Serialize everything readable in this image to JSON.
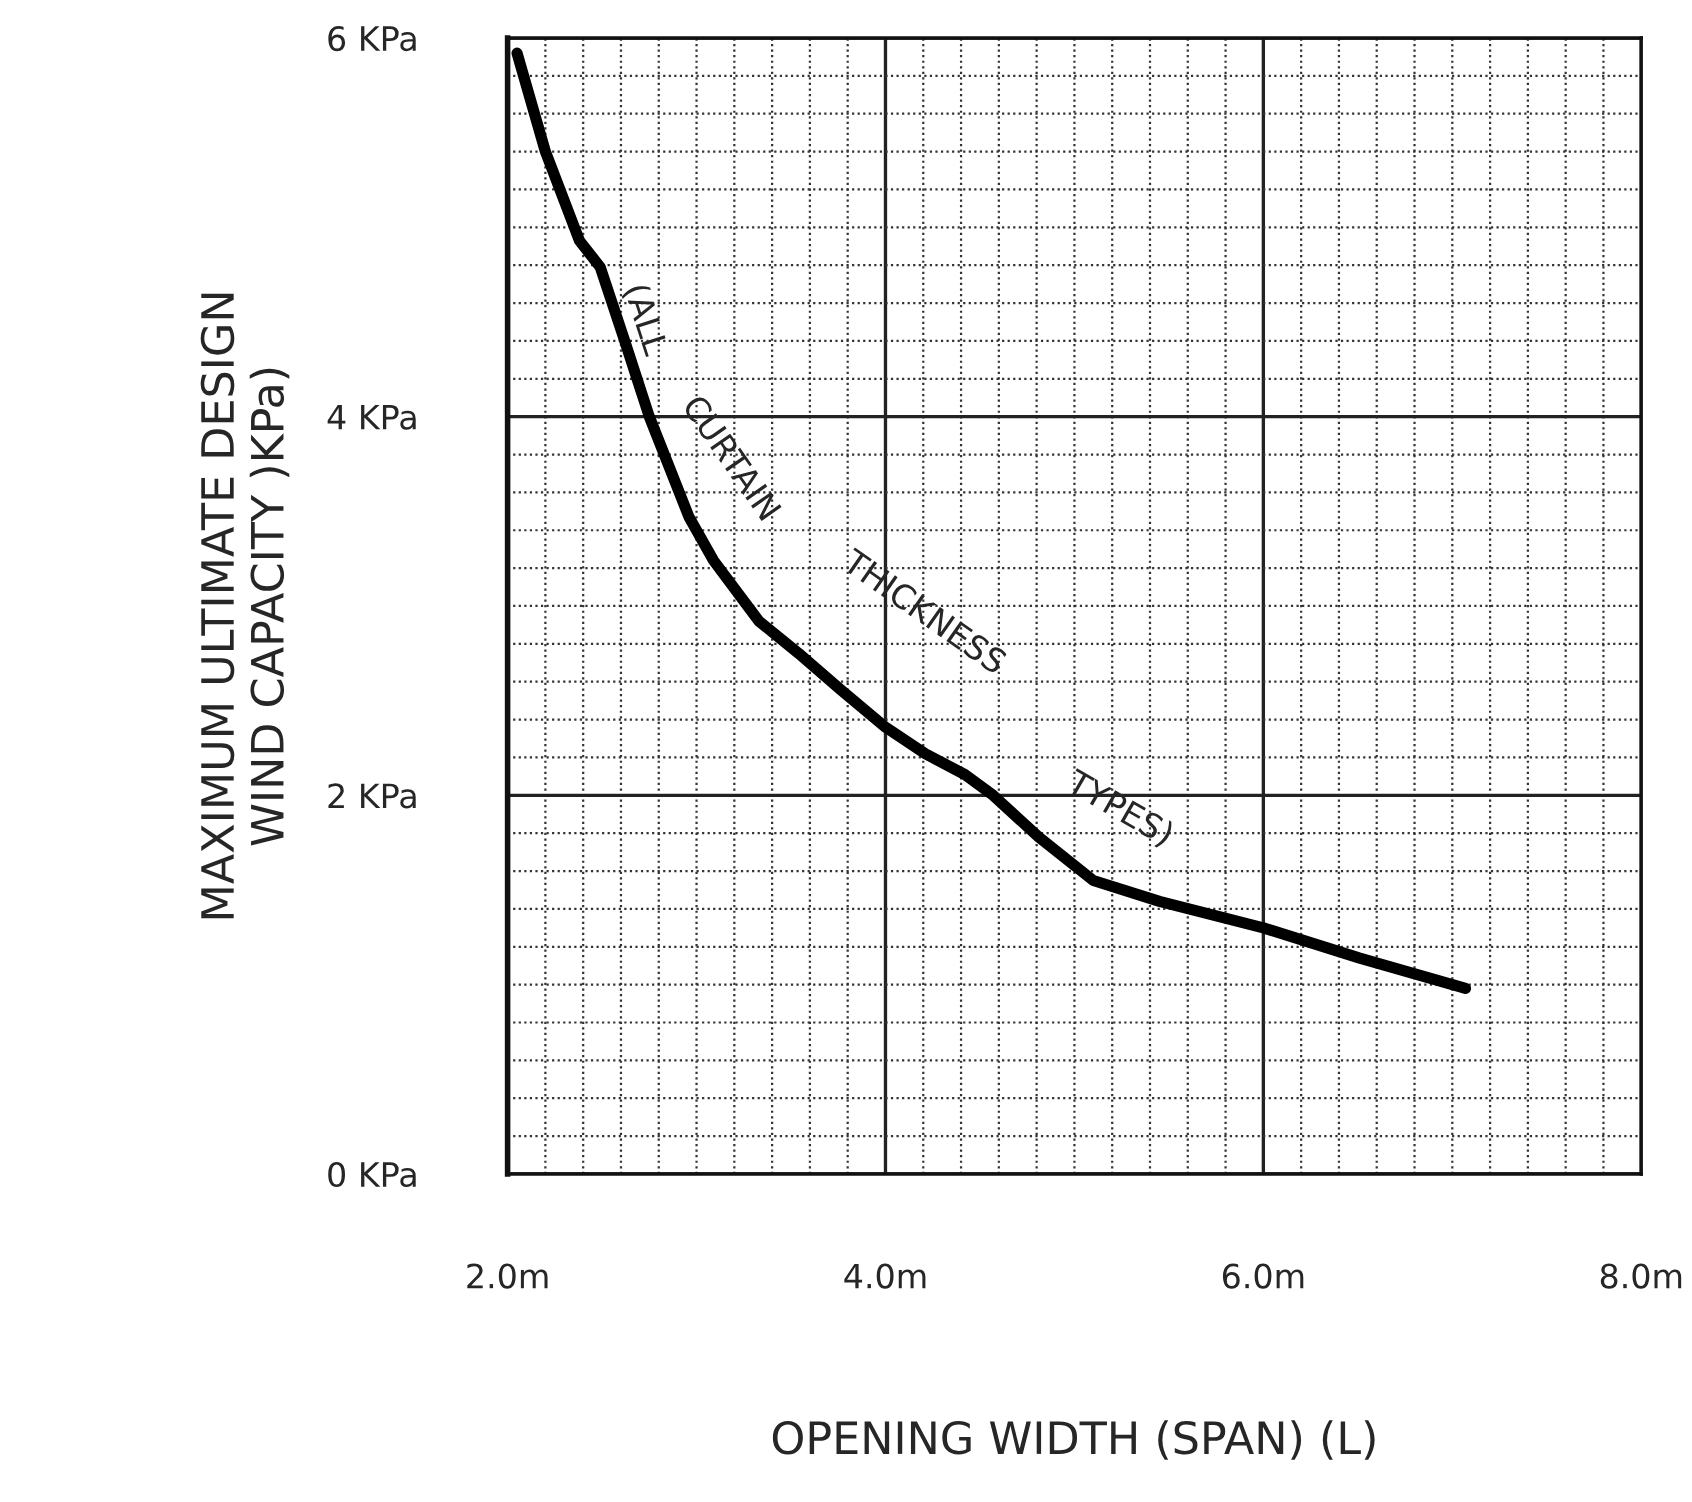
{
  "chart_data": {
    "type": "line",
    "xlabel": "OPENING WIDTH (SPAN) (L)",
    "ylabel": "MAXIMUM ULTIMATE DESIGN\nWIND CAPACITY )KPa)",
    "x": [
      2.05,
      2.2,
      2.38,
      2.49,
      2.62,
      2.75,
      2.96,
      3.09,
      3.33,
      3.54,
      3.76,
      4.0,
      4.21,
      4.42,
      4.57,
      4.81,
      5.1,
      5.45,
      6.0,
      6.51,
      7.07
    ],
    "series": [
      {
        "color": "#000000",
        "values": [
          5.92,
          5.4,
          4.93,
          4.79,
          4.4,
          4.0,
          3.47,
          3.24,
          2.92,
          2.75,
          2.56,
          2.36,
          2.22,
          2.11,
          2.0,
          1.78,
          1.55,
          1.44,
          1.3,
          1.14,
          0.98
        ]
      }
    ],
    "xlim": [
      2,
      8
    ],
    "ylim": [
      0,
      6
    ],
    "xticks": [
      {
        "value": 2,
        "label": "2.0m"
      },
      {
        "value": 4,
        "label": "4.0m"
      },
      {
        "value": 6,
        "label": "6.0m"
      },
      {
        "value": 8,
        "label": "8.0m"
      }
    ],
    "yticks": [
      {
        "value": 0,
        "label": "0 KPa"
      },
      {
        "value": 2,
        "label": "2 KPa"
      },
      {
        "value": 4,
        "label": "4 KPa"
      },
      {
        "value": 6,
        "label": "6 KPa"
      }
    ],
    "grid": true,
    "marker": "none",
    "line_style": "solid",
    "annotations": [
      "(ALL",
      "CURTAIN",
      "THICKNESS",
      "TYPES)"
    ]
  }
}
